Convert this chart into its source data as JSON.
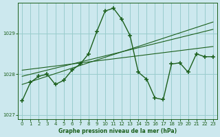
{
  "bg_color": "#cce8ee",
  "grid_color": "#99cccc",
  "line_color": "#1a5e1a",
  "title": "Graphe pression niveau de la mer (hPa)",
  "xlim": [
    -0.5,
    23.5
  ],
  "ylim": [
    1026.9,
    1029.75
  ],
  "yticks": [
    1027,
    1028,
    1029
  ],
  "xticks": [
    0,
    1,
    2,
    3,
    4,
    5,
    6,
    7,
    8,
    9,
    10,
    11,
    12,
    13,
    14,
    15,
    16,
    17,
    18,
    19,
    20,
    21,
    22,
    23
  ],
  "main_x": [
    0,
    1,
    2,
    3,
    4,
    5,
    6,
    7,
    8,
    9,
    10,
    11,
    12,
    13,
    14,
    15,
    16,
    17,
    18,
    19,
    20,
    21,
    22,
    23
  ],
  "main_y": [
    1027.35,
    1027.8,
    1027.95,
    1028.0,
    1027.75,
    1027.85,
    1028.1,
    1028.25,
    1028.5,
    1029.05,
    1029.55,
    1029.62,
    1029.35,
    1028.95,
    1028.05,
    1027.88,
    1027.42,
    1027.38,
    1028.25,
    1028.28,
    1028.05,
    1028.5,
    1028.43,
    1028.43
  ],
  "trend1_x": [
    0,
    23
  ],
  "trend1_y": [
    1027.95,
    1029.1
  ],
  "trend2_x": [
    0,
    23
  ],
  "trend2_y": [
    1027.75,
    1029.28
  ],
  "trend3_x": [
    0,
    23
  ],
  "trend3_y": [
    1028.1,
    1028.68
  ]
}
